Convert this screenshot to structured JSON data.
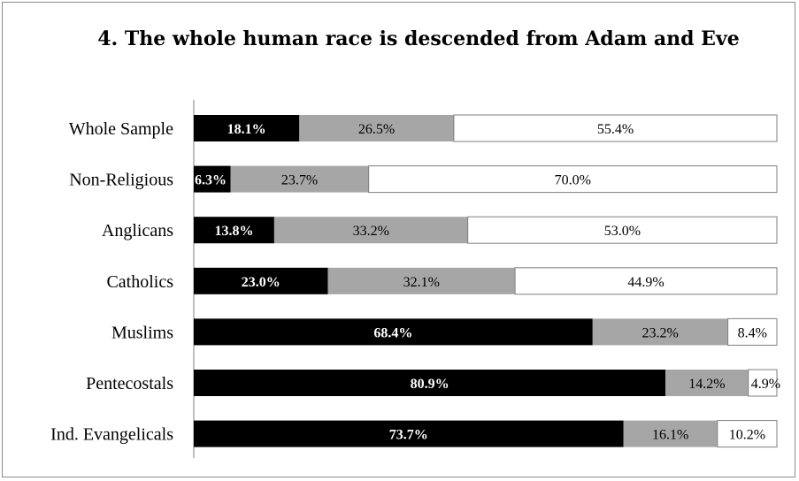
{
  "chart_data": {
    "type": "bar",
    "orientation": "horizontal",
    "stacked": true,
    "title": "4. The whole human race is descended from Adam and Eve",
    "categories": [
      "Whole Sample",
      "Non-Religious",
      "Anglicans",
      "Catholics",
      "Muslims",
      "Pentecostals",
      "Ind. Evangelicals"
    ],
    "series": [
      {
        "values": [
          18.1,
          6.3,
          13.8,
          23.0,
          68.4,
          80.9,
          73.7
        ],
        "labels": [
          "18.1%",
          "6.3%",
          "13.8%",
          "23.0%",
          "68.4%",
          "80.9%",
          "73.7%"
        ],
        "color": "#000000",
        "label_color": "#ffffff"
      },
      {
        "values": [
          26.5,
          23.7,
          33.2,
          32.1,
          23.2,
          14.2,
          16.1
        ],
        "labels": [
          "26.5%",
          "23.7%",
          "33.2%",
          "32.1%",
          "23.2%",
          "14.2%",
          "16.1%"
        ],
        "color": "#a6a6a6",
        "label_color": "#000000"
      },
      {
        "values": [
          55.4,
          70.0,
          53.0,
          44.9,
          8.4,
          4.9,
          10.2
        ],
        "labels": [
          "55.4%",
          "70.0%",
          "53.0%",
          "44.9%",
          "8.4%",
          "4.9%",
          "10.2%"
        ],
        "color": "#ffffff",
        "label_color": "#000000"
      }
    ],
    "xlim": [
      0,
      100
    ],
    "legend": "none",
    "grid": false
  }
}
